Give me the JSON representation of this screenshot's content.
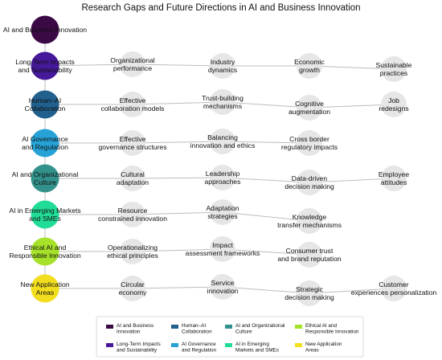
{
  "title": "Research Gaps and Future Directions in AI and Business Innovation",
  "themes": [
    {
      "label_lines": [
        "AI and Business Innovation"
      ],
      "color": "#3b0a45",
      "gaps": []
    },
    {
      "label_lines": [
        "Long-Term Impacts",
        "and Sustainability"
      ],
      "color": "#46189a",
      "gaps": [
        [
          "Organizational",
          "performance"
        ],
        [
          "Industry",
          "dynamics"
        ],
        [
          "Economic",
          "growth"
        ],
        [
          "Sustainable",
          "practices"
        ]
      ]
    },
    {
      "label_lines": [
        "Human–AI",
        "Collaboration"
      ],
      "color": "#215f8c",
      "gaps": [
        [
          "Effective",
          "collaboration models"
        ],
        [
          "Trust-building",
          "mechanisms"
        ],
        [
          "Cognitive",
          "augmentation"
        ],
        [
          "Job",
          "redesigns"
        ]
      ]
    },
    {
      "label_lines": [
        "AI Governance",
        "and Regulation"
      ],
      "color": "#26a2d6",
      "gaps": [
        [
          "Effective",
          "governance structures"
        ],
        [
          "Balancing",
          "innovation and ethics"
        ],
        [
          "Cross border",
          "regulatory impacts"
        ]
      ]
    },
    {
      "label_lines": [
        "AI and Organizational",
        "Culture"
      ],
      "color": "#33918b",
      "gaps": [
        [
          "Cultural",
          "adaptation"
        ],
        [
          "Leadership",
          "approaches"
        ],
        [
          "Data-driven",
          "decision making"
        ],
        [
          "Employee",
          "attitudes"
        ]
      ]
    },
    {
      "label_lines": [
        "AI in Emerging Markets",
        "and SMEs"
      ],
      "color": "#21dc97",
      "gaps": [
        [
          "Resource",
          "constrained innovation"
        ],
        [
          "Adaptation",
          "strategies"
        ],
        [
          "Knowledge",
          "transfer mechanisms"
        ]
      ]
    },
    {
      "label_lines": [
        "Ethical AI and",
        "Responsible Innovation"
      ],
      "color": "#a6e22a",
      "gaps": [
        [
          "Operationalizing",
          "ethical principles"
        ],
        [
          "Impact",
          "assessment frameworks"
        ],
        [
          "Consumer trust",
          "and brand reputation"
        ]
      ]
    },
    {
      "label_lines": [
        "New Application",
        "Areas"
      ],
      "color": "#f2de1e",
      "gaps": [
        [
          "Circular",
          "economy"
        ],
        [
          "Service",
          "innovation"
        ],
        [
          "Strategic",
          "decision making"
        ],
        [
          "Customer",
          "experiences personalization"
        ]
      ]
    }
  ],
  "legend": [
    {
      "label_lines": [
        "AI and Business",
        "Innovation"
      ],
      "color": "#3b0a45"
    },
    {
      "label_lines": [
        "Human–AI",
        "Collaboration"
      ],
      "color": "#215f8c"
    },
    {
      "label_lines": [
        "AI and Organizational",
        "Culture"
      ],
      "color": "#33918b"
    },
    {
      "label_lines": [
        "Ethical AI and",
        "Responsible Innovation"
      ],
      "color": "#a6e22a"
    },
    {
      "label_lines": [
        "Long-Term Impacts",
        "and Sustainability"
      ],
      "color": "#46189a"
    },
    {
      "label_lines": [
        "AI Governance",
        "and Regulation"
      ],
      "color": "#26a2d6"
    },
    {
      "label_lines": [
        "AI in Emerging",
        "Markets and SMEs"
      ],
      "color": "#21dc97"
    },
    {
      "label_lines": [
        "New Application",
        "Areas"
      ],
      "color": "#f2de1e"
    }
  ],
  "colors": {
    "gap_node": "#e6e6e6",
    "edge": "#bdbdbd"
  }
}
